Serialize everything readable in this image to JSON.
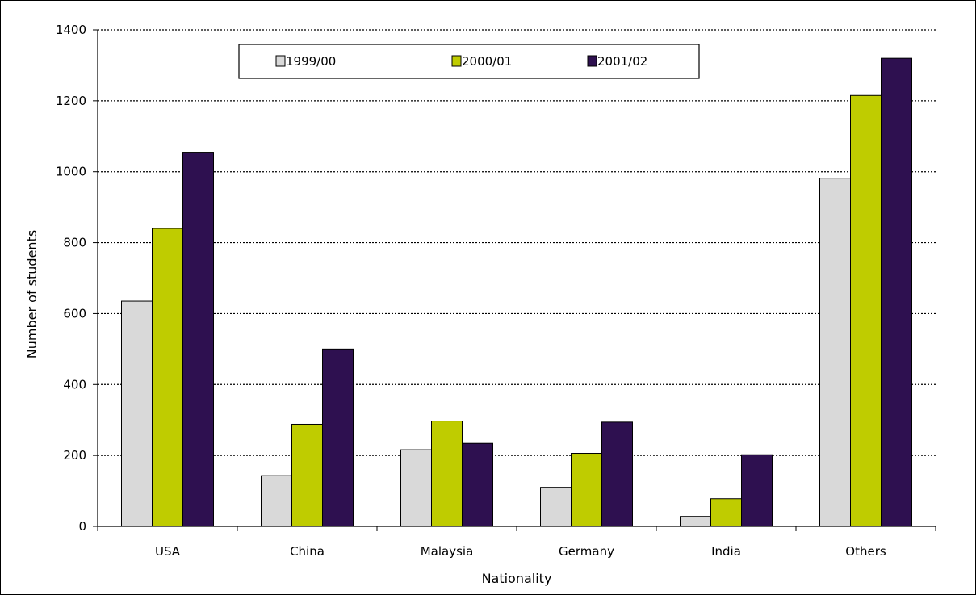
{
  "chart_data": {
    "type": "bar",
    "title": "",
    "xlabel": "Nationality",
    "ylabel": "Number of students",
    "categories": [
      "USA",
      "China",
      "Malaysia",
      "Germany",
      "India",
      "Others"
    ],
    "series": [
      {
        "name": "1999/00",
        "color": "#d9d9d9",
        "values": [
          635,
          143,
          216,
          110,
          28,
          982
        ]
      },
      {
        "name": "2000/01",
        "color": "#bfcc00",
        "values": [
          840,
          288,
          297,
          206,
          78,
          1215
        ]
      },
      {
        "name": "2001/02",
        "color": "#2e1050",
        "values": [
          1055,
          500,
          234,
          294,
          202,
          1320
        ]
      }
    ],
    "ylim": [
      0,
      1400
    ],
    "yticks": [
      0,
      200,
      400,
      600,
      800,
      1000,
      1200,
      1400
    ],
    "grid": "horizontal-dotted",
    "legend_position": "top"
  }
}
